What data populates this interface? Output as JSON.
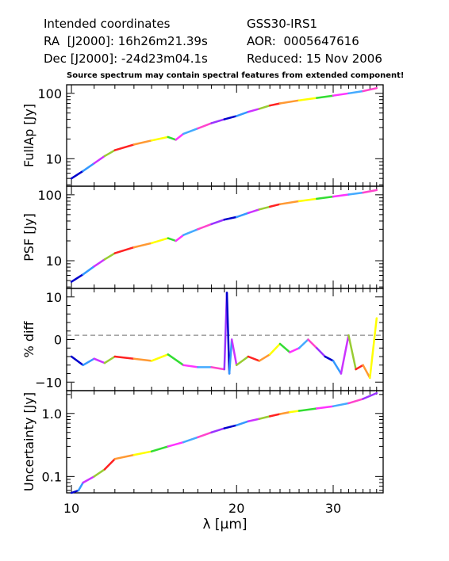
{
  "header": {
    "left": [
      "Intended coordinates",
      "RA  [J2000]: 16h26m21.39s",
      "Dec [J2000]: -24d23m04.1s"
    ],
    "right": [
      "GSS30-IRS1",
      "AOR:  0005647616",
      "Reduced: 15 Nov 2006"
    ],
    "note": "Source spectrum may contain spectral features from extended component!"
  },
  "palette": [
    "#0000cc",
    "#3399ff",
    "#cc33ff",
    "#99cc33",
    "#ff2222",
    "#ff9933",
    "#ffff00",
    "#33dd33",
    "#ff33ff",
    "#44aaff",
    "#ff44cc",
    "#9933ff"
  ],
  "chart_data": [
    {
      "type": "line",
      "ylabel": "FullAp [Jy]",
      "yscale": "log",
      "xscale": "log",
      "xlim": [
        9.8,
        37
      ],
      "ylim": [
        3.8,
        135
      ],
      "yticks": [
        10,
        100
      ],
      "ytick_labels": [
        "10",
        "100"
      ],
      "x": [
        10,
        10.5,
        11,
        11.5,
        12,
        13,
        14,
        15,
        15.5,
        16,
        17,
        18,
        19,
        20,
        21,
        22,
        23,
        24,
        26,
        28,
        30,
        32,
        34,
        36
      ],
      "y": [
        5,
        6.5,
        8.5,
        11,
        13.5,
        16.5,
        19,
        21.5,
        19.5,
        24,
        29,
        35,
        40,
        45,
        52,
        58,
        65,
        70,
        78,
        85,
        92,
        100,
        108,
        120
      ]
    },
    {
      "type": "line",
      "ylabel": "PSF [Jy]",
      "yscale": "log",
      "xscale": "log",
      "xlim": [
        9.8,
        37
      ],
      "ylim": [
        3.8,
        135
      ],
      "yticks": [
        10,
        100
      ],
      "ytick_labels": [
        "10",
        "100"
      ],
      "x": [
        10,
        10.5,
        11,
        11.5,
        12,
        13,
        14,
        15,
        15.5,
        16,
        17,
        18,
        19,
        20,
        21,
        22,
        23,
        24,
        26,
        28,
        30,
        32,
        34,
        36
      ],
      "y": [
        4.8,
        6.2,
        8.2,
        10.5,
        13,
        16,
        18.5,
        22,
        20,
        24.5,
        30,
        36,
        42,
        46,
        53,
        60,
        66,
        72,
        80,
        87,
        94,
        101,
        108,
        118
      ]
    },
    {
      "type": "line",
      "ylabel": "% diff",
      "yscale": "linear",
      "xscale": "log",
      "xlim": [
        9.8,
        37
      ],
      "ylim": [
        -12,
        12
      ],
      "yticks": [
        -10,
        0,
        10
      ],
      "ytick_labels": [
        "−10",
        "0",
        "10"
      ],
      "reference_line": 1,
      "x": [
        10,
        10.5,
        11,
        11.5,
        12,
        13,
        14,
        15,
        16,
        17,
        18,
        19,
        19.2,
        19.4,
        19.6,
        20,
        21,
        22,
        23,
        24,
        25,
        26,
        27,
        28,
        29,
        30,
        31,
        32,
        33,
        34,
        35,
        36
      ],
      "y": [
        -4,
        -6,
        -4.5,
        -5.5,
        -4,
        -4.5,
        -5,
        -3.5,
        -6,
        -6.5,
        -6.5,
        -7,
        11,
        -8,
        0,
        -6,
        -4,
        -5,
        -3.5,
        -1,
        -3,
        -2,
        0,
        -2,
        -4,
        -5,
        -8,
        1,
        -7,
        -6,
        -9,
        5
      ]
    },
    {
      "type": "line",
      "ylabel": "Uncertainty [Jy]",
      "yscale": "log",
      "xscale": "log",
      "xlim": [
        9.8,
        37
      ],
      "ylim": [
        0.055,
        2.3
      ],
      "yticks": [
        0.1,
        1
      ],
      "ytick_labels": [
        "0.1",
        "1.0"
      ],
      "x": [
        10,
        10.3,
        10.5,
        11,
        11.5,
        12,
        13,
        14,
        15,
        16,
        17,
        18,
        19,
        20,
        21,
        22,
        23,
        24,
        25,
        26,
        28,
        30,
        32,
        34,
        36
      ],
      "y": [
        0.055,
        0.06,
        0.08,
        0.1,
        0.13,
        0.19,
        0.22,
        0.25,
        0.3,
        0.35,
        0.42,
        0.5,
        0.58,
        0.65,
        0.75,
        0.82,
        0.9,
        0.98,
        1.05,
        1.1,
        1.2,
        1.3,
        1.45,
        1.7,
        2.1
      ]
    }
  ],
  "xaxis": {
    "label": "λ [μm]",
    "ticks": [
      10,
      20,
      30
    ],
    "tick_labels": [
      "10",
      "20",
      "30"
    ]
  }
}
